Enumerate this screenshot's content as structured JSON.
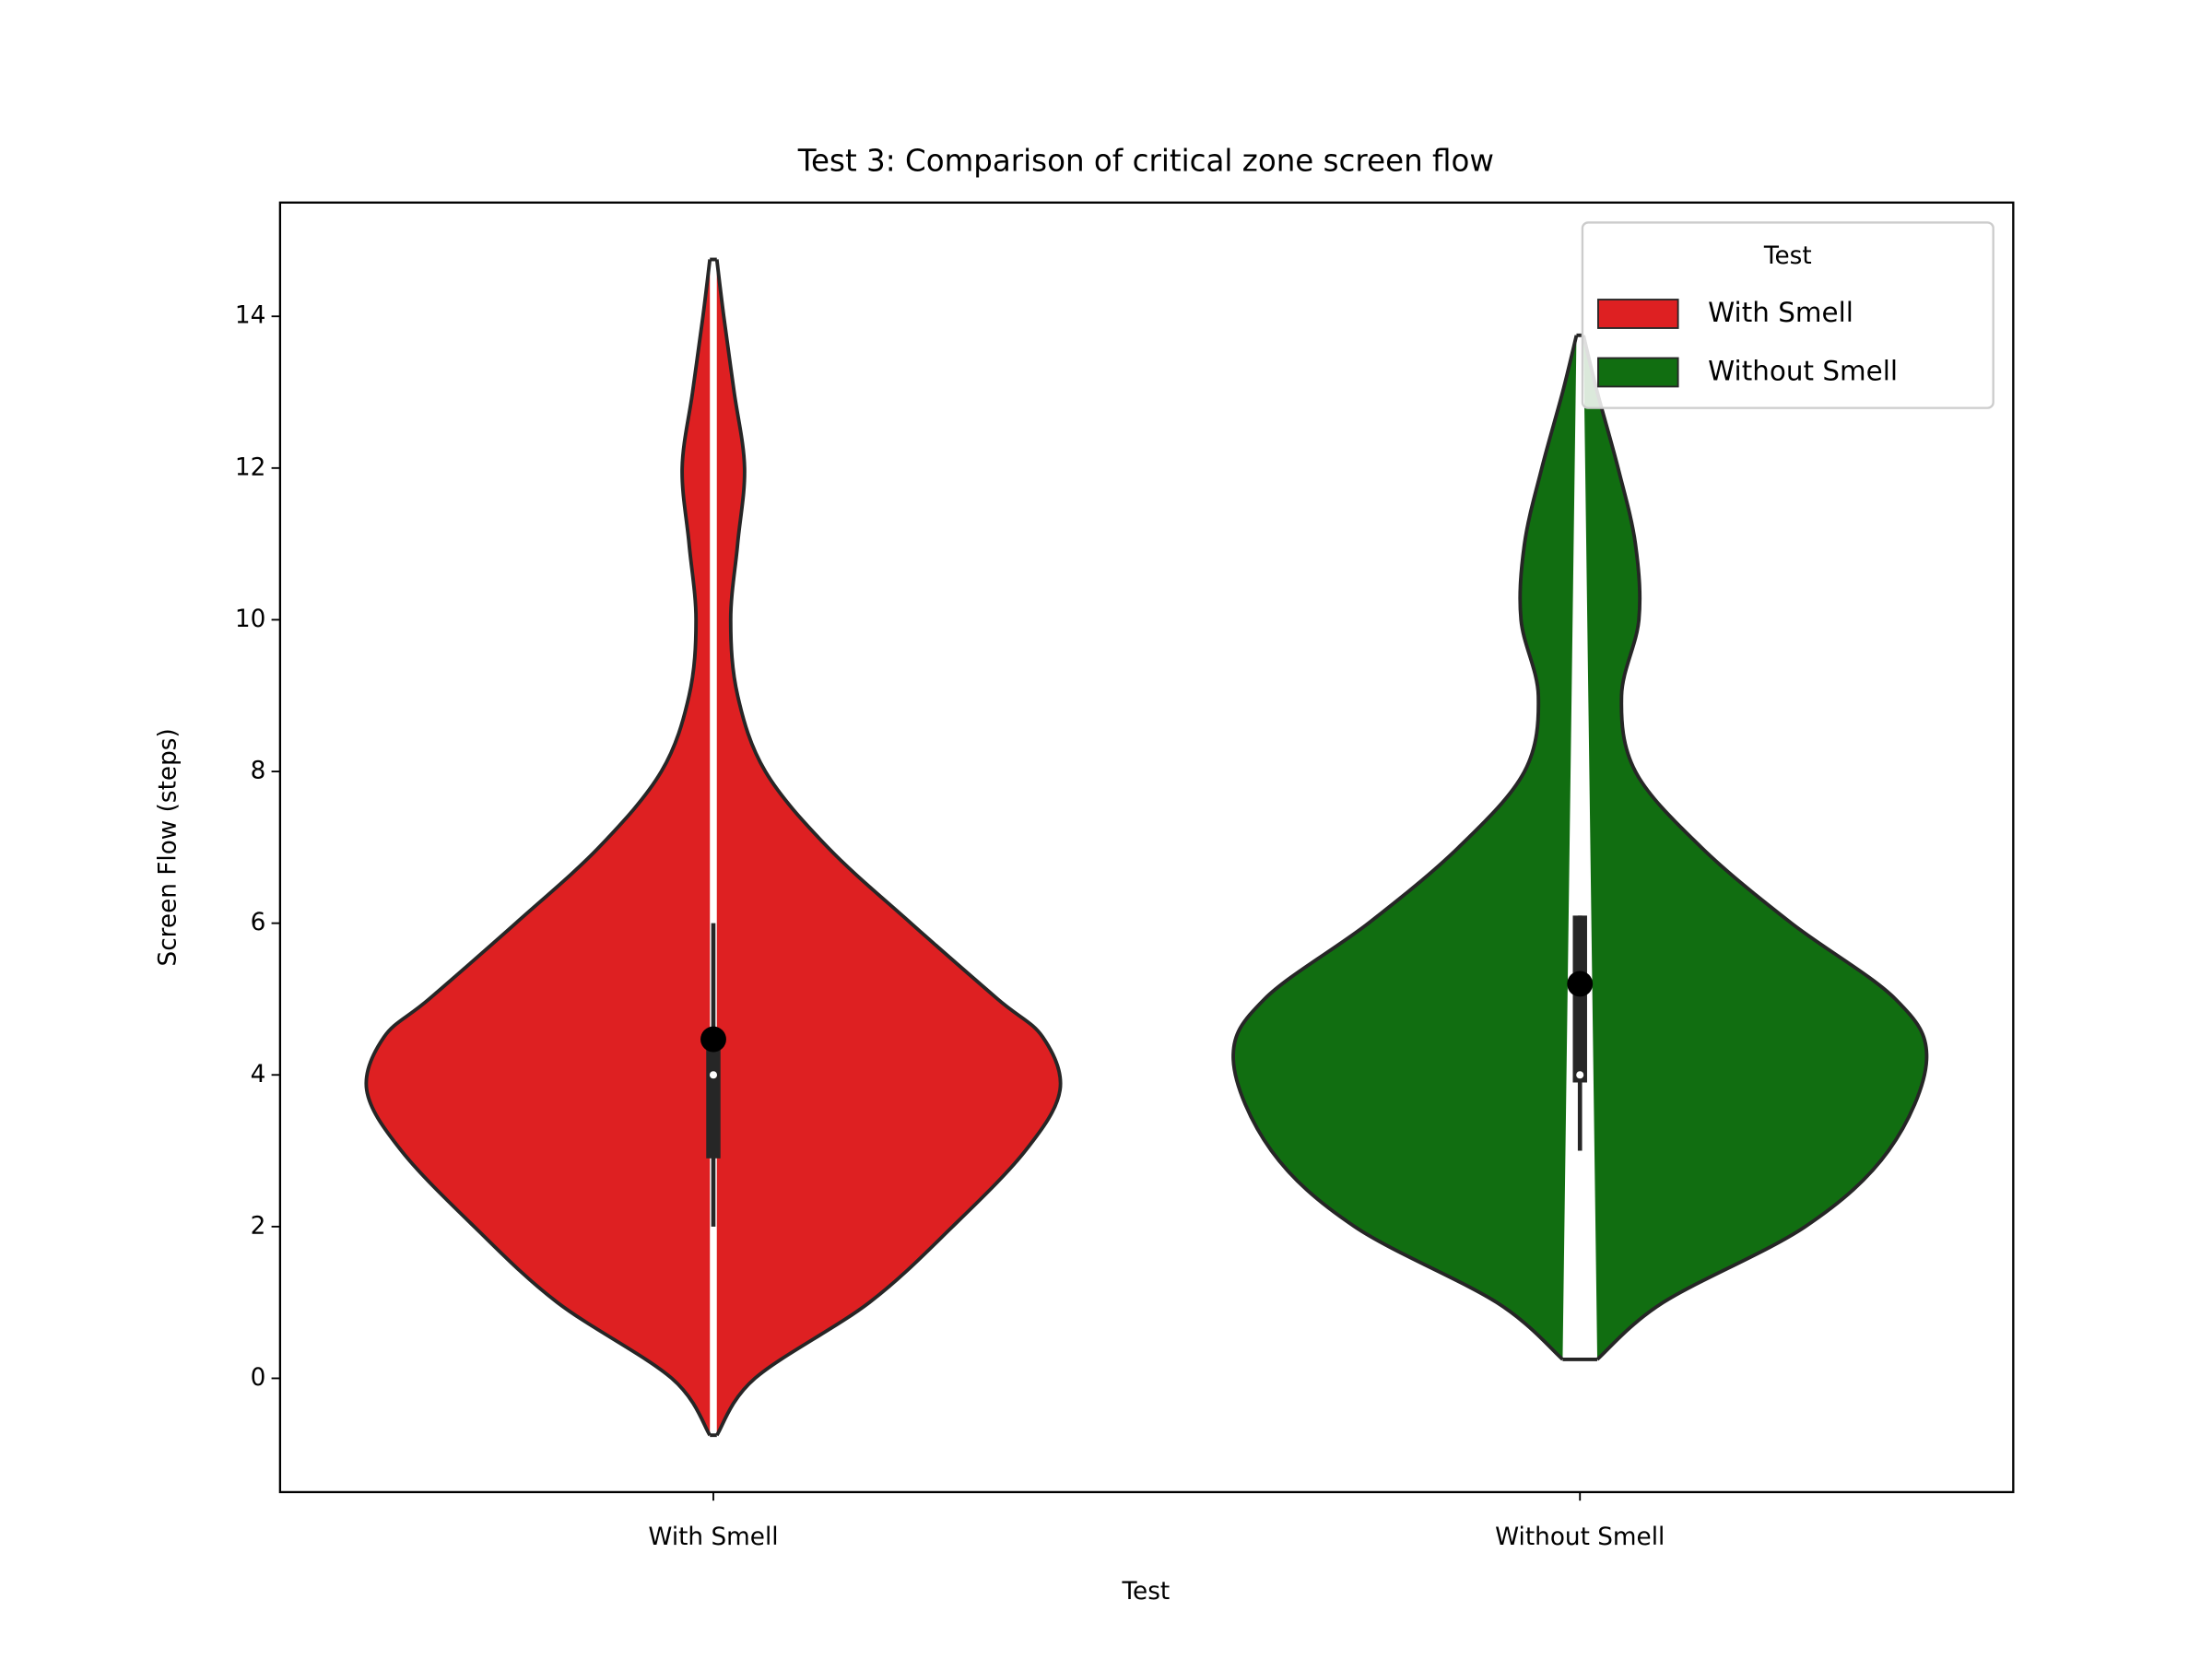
{
  "chart_data": {
    "type": "violin",
    "title": "Test 3: Comparison of critical zone screen flow",
    "x_label": "Test",
    "y_label": "Screen Flow (steps)",
    "categories": [
      "With Smell",
      "Without Smell"
    ],
    "ylim": [
      -1.5,
      15.5
    ],
    "yticks": [
      0,
      2,
      4,
      6,
      8,
      10,
      12,
      14
    ],
    "legend": {
      "title": "Test",
      "loc": "upper right"
    },
    "series": [
      {
        "name": "With Smell",
        "color": "#de2022",
        "y": [
          -0.75,
          0,
          1,
          2,
          3,
          3.8,
          4.5,
          5,
          6,
          7,
          8,
          9,
          10,
          11,
          12,
          13,
          14,
          14.75
        ],
        "density": [
          0.01,
          0.12,
          0.45,
          0.69,
          0.9,
          1,
          0.95,
          0.82,
          0.57,
          0.33,
          0.15,
          0.07,
          0.05,
          0.07,
          0.09,
          0.06,
          0.03,
          0.01
        ],
        "whisker_low": 2,
        "q1": 2.9,
        "median": 4,
        "q3": 4.5,
        "whisker_high": 6,
        "mean": 4.47
      },
      {
        "name": "Without Smell",
        "color": "#116e11",
        "y": [
          0.25,
          1,
          2,
          3,
          4.2,
          5,
          6,
          7,
          8,
          9,
          10,
          11,
          12,
          13,
          13.75
        ],
        "density": [
          0.05,
          0.24,
          0.65,
          0.89,
          1,
          0.91,
          0.61,
          0.35,
          0.16,
          0.12,
          0.17,
          0.16,
          0.11,
          0.05,
          0.01
        ],
        "whisker_low": 3,
        "q1": 3.9,
        "median": 4,
        "q3": 6.1,
        "whisker_high": 6.1,
        "mean": 5.2
      }
    ]
  }
}
